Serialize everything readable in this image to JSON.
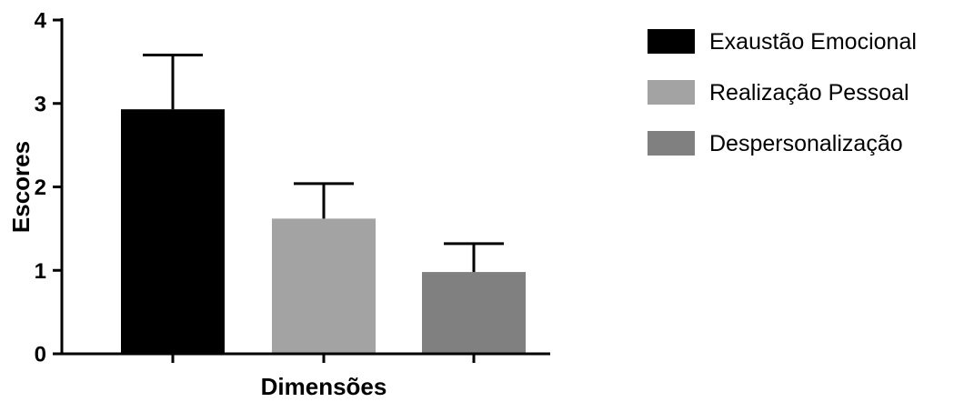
{
  "chart_data": {
    "type": "bar",
    "title": "",
    "xlabel": "Dimensões",
    "ylabel": "Escores",
    "ylim": [
      0,
      4
    ],
    "yticks": [
      0,
      1,
      2,
      3,
      4
    ],
    "grid": false,
    "legend_position": "top-right",
    "series": [
      {
        "name": "Exaustão Emocional",
        "value": 2.93,
        "error": 0.65,
        "color": "#000000"
      },
      {
        "name": "Realização Pessoal",
        "value": 1.62,
        "error": 0.42,
        "color": "#a3a3a3"
      },
      {
        "name": "Despersonalização",
        "value": 0.98,
        "error": 0.34,
        "color": "#808080"
      }
    ]
  }
}
